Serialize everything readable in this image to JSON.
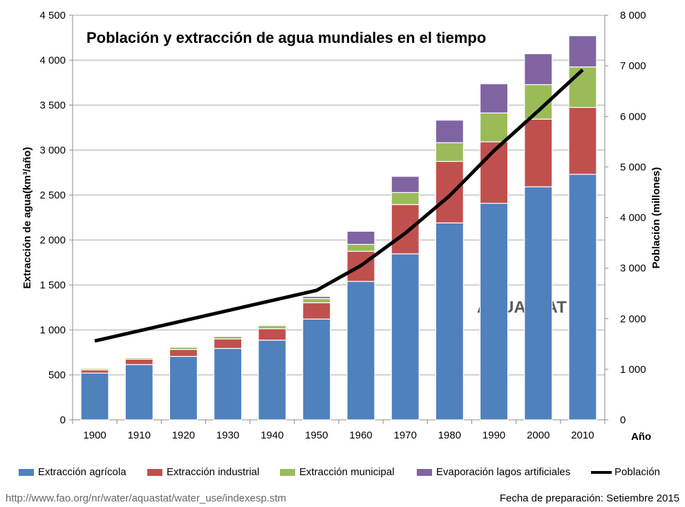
{
  "chart_data": {
    "type": "bar",
    "stacked": true,
    "title": "Población y extracción de agua mundiales en el tiempo",
    "xlabel": "Año",
    "ylabel": "Extracción de agua(km³/año)",
    "y2label": "Población (millones)",
    "categories": [
      "1900",
      "1910",
      "1920",
      "1930",
      "1940",
      "1950",
      "1960",
      "1970",
      "1980",
      "1990",
      "2000",
      "2010"
    ],
    "ylim": [
      0,
      4500
    ],
    "yticks": [
      0,
      500,
      1000,
      1500,
      2000,
      2500,
      3000,
      3500,
      4000,
      4500
    ],
    "ytick_labels": [
      "0",
      "500",
      "1 000",
      "1 500",
      "2 000",
      "2 500",
      "3 000",
      "3 500",
      "4 000",
      "4 500"
    ],
    "y2lim": [
      0,
      8000
    ],
    "y2ticks": [
      0,
      1000,
      2000,
      3000,
      4000,
      5000,
      6000,
      7000,
      8000
    ],
    "y2tick_labels": [
      "0",
      "1 000",
      "2 000",
      "3 000",
      "4 000",
      "5 000",
      "6 000",
      "7 000",
      "8 000"
    ],
    "grid": true,
    "legend_position": "bottom",
    "series": [
      {
        "name": "Extracción agrícola",
        "color": "#4F81BD",
        "values": [
          520,
          615,
          705,
          795,
          887,
          1121,
          1540,
          1846,
          2190,
          2408,
          2592,
          2731
        ]
      },
      {
        "name": "Extracción industrial",
        "color": "#C0504D",
        "values": [
          35,
          59,
          77,
          105,
          126,
          182,
          334,
          549,
          684,
          684,
          752,
          743
        ]
      },
      {
        "name": "Extracción municipal",
        "color": "#9BBB59",
        "values": [
          16,
          16,
          26,
          28,
          36,
          46,
          77,
          133,
          208,
          321,
          384,
          451
        ]
      },
      {
        "name": "Evaporación lagos artificiales",
        "color": "#8064A2",
        "values": [
          3,
          3,
          3,
          3,
          10,
          23,
          146,
          180,
          251,
          325,
          344,
          347
        ]
      },
      {
        "name": "Población",
        "type": "line",
        "axis": "right",
        "color": "#000000",
        "values": [
          1560,
          1760,
          1960,
          2160,
          2360,
          2560,
          3050,
          3690,
          4430,
          5320,
          6110,
          6920
        ]
      }
    ],
    "watermark": "AQUASTAT"
  },
  "footer": {
    "url": "http://www.fao.org/nr/water/aquastat/water_use/indexesp.stm",
    "date": "Fecha de preparación: Setiembre 2015"
  }
}
